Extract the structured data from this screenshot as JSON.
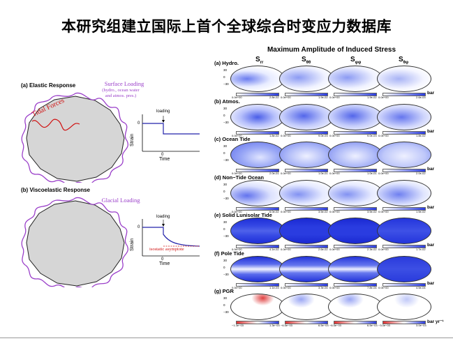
{
  "title": "本研究组建立国际上首个全球综合时变应力数据库",
  "left": {
    "elastic_label": "(a) Elastic Response",
    "surface_loading": "Surface Loading",
    "surface_loading_sub1": "(hydro., ocean water",
    "surface_loading_sub2": "and atmos. pres.)",
    "tidal_forces": "Tidal Forces",
    "loading1": "loading",
    "strain1": "Strain",
    "time1": "Time",
    "zero1a": "0",
    "zero1b": "0",
    "viscoelastic_label": "(b) Viscoelastic Response",
    "glacial_loading": "Glacial Loading",
    "loading2": "loading",
    "strain2": "Strain",
    "time2": "Time",
    "zero2a": "0",
    "zero2b": "0",
    "isostatic": "isostatic asymptote"
  },
  "right": {
    "title": "Maximum Amplitude of Induced Stress",
    "col1": "S",
    "col1_sub": "rr",
    "col2": "S",
    "col2_sub": "θθ",
    "col3": "S",
    "col3_sub": "φφ",
    "col4": "S",
    "col4_sub": "θφ",
    "rows": [
      {
        "label": "(a) Hydro.",
        "ticks": [
          "0.0e+00",
          "2.8e-02",
          "0.0e+00",
          "1.9e-02",
          "0.0e+00",
          "1.9e-02",
          "0.0e+00",
          "2.6e-03"
        ],
        "unit": "bar"
      },
      {
        "label": "(b) Atmos.",
        "ticks": [
          "0.0e+00",
          "1.8e-02",
          "0.0e+00",
          "9.0e-03",
          "0.0e+00",
          "9.0e-03",
          "0.0e+00",
          "1.8e-02"
        ],
        "unit": "bar"
      },
      {
        "label": "(c) Ocean Tide",
        "ticks": [
          "0.0e+00",
          "2.0e-01",
          "0.0e+00",
          "1.0e-01",
          "0.0e+00",
          "1.0e-01",
          "0.0e+00",
          "2.0e-02"
        ],
        "unit": "bar"
      },
      {
        "label": "(d) Non−Tide Ocean",
        "ticks": [
          "0.0e+00",
          "6.0e-02",
          "0.0e+00",
          "3.5e-02",
          "0.0e+00",
          "3.5e-02",
          "0.0e+00",
          "1.5e-02"
        ],
        "unit": "bar"
      },
      {
        "label": "(e) Solid Lunisolar Tide",
        "ticks": [
          "0.0e+00",
          "4.1e-02",
          "0.0e+00",
          "2.6e-02",
          "0.0e+00",
          "2.3e-02",
          "0.0e+00",
          "1.7e-02"
        ],
        "unit": "bar"
      },
      {
        "label": "(f) Pole Tide",
        "ticks": [
          "0.0e+00",
          "1.1e-03",
          "0.0e+00",
          "3.3e-04",
          "0.0e+00",
          "7.8e-04",
          "0.0e+00",
          "4.5e-04"
        ],
        "unit": "bar"
      },
      {
        "label": "(g) PGR",
        "ticks": [
          "−1.3e−03",
          "1.3e−03",
          "−6.5e−03",
          "6.5e−03",
          "−6.5e−03",
          "6.5e−03",
          "−3.0e−03",
          "3.0e−03"
        ],
        "unit": "bar yr⁻¹"
      }
    ],
    "lat_labels": [
      "30",
      "0",
      "−30"
    ]
  }
}
